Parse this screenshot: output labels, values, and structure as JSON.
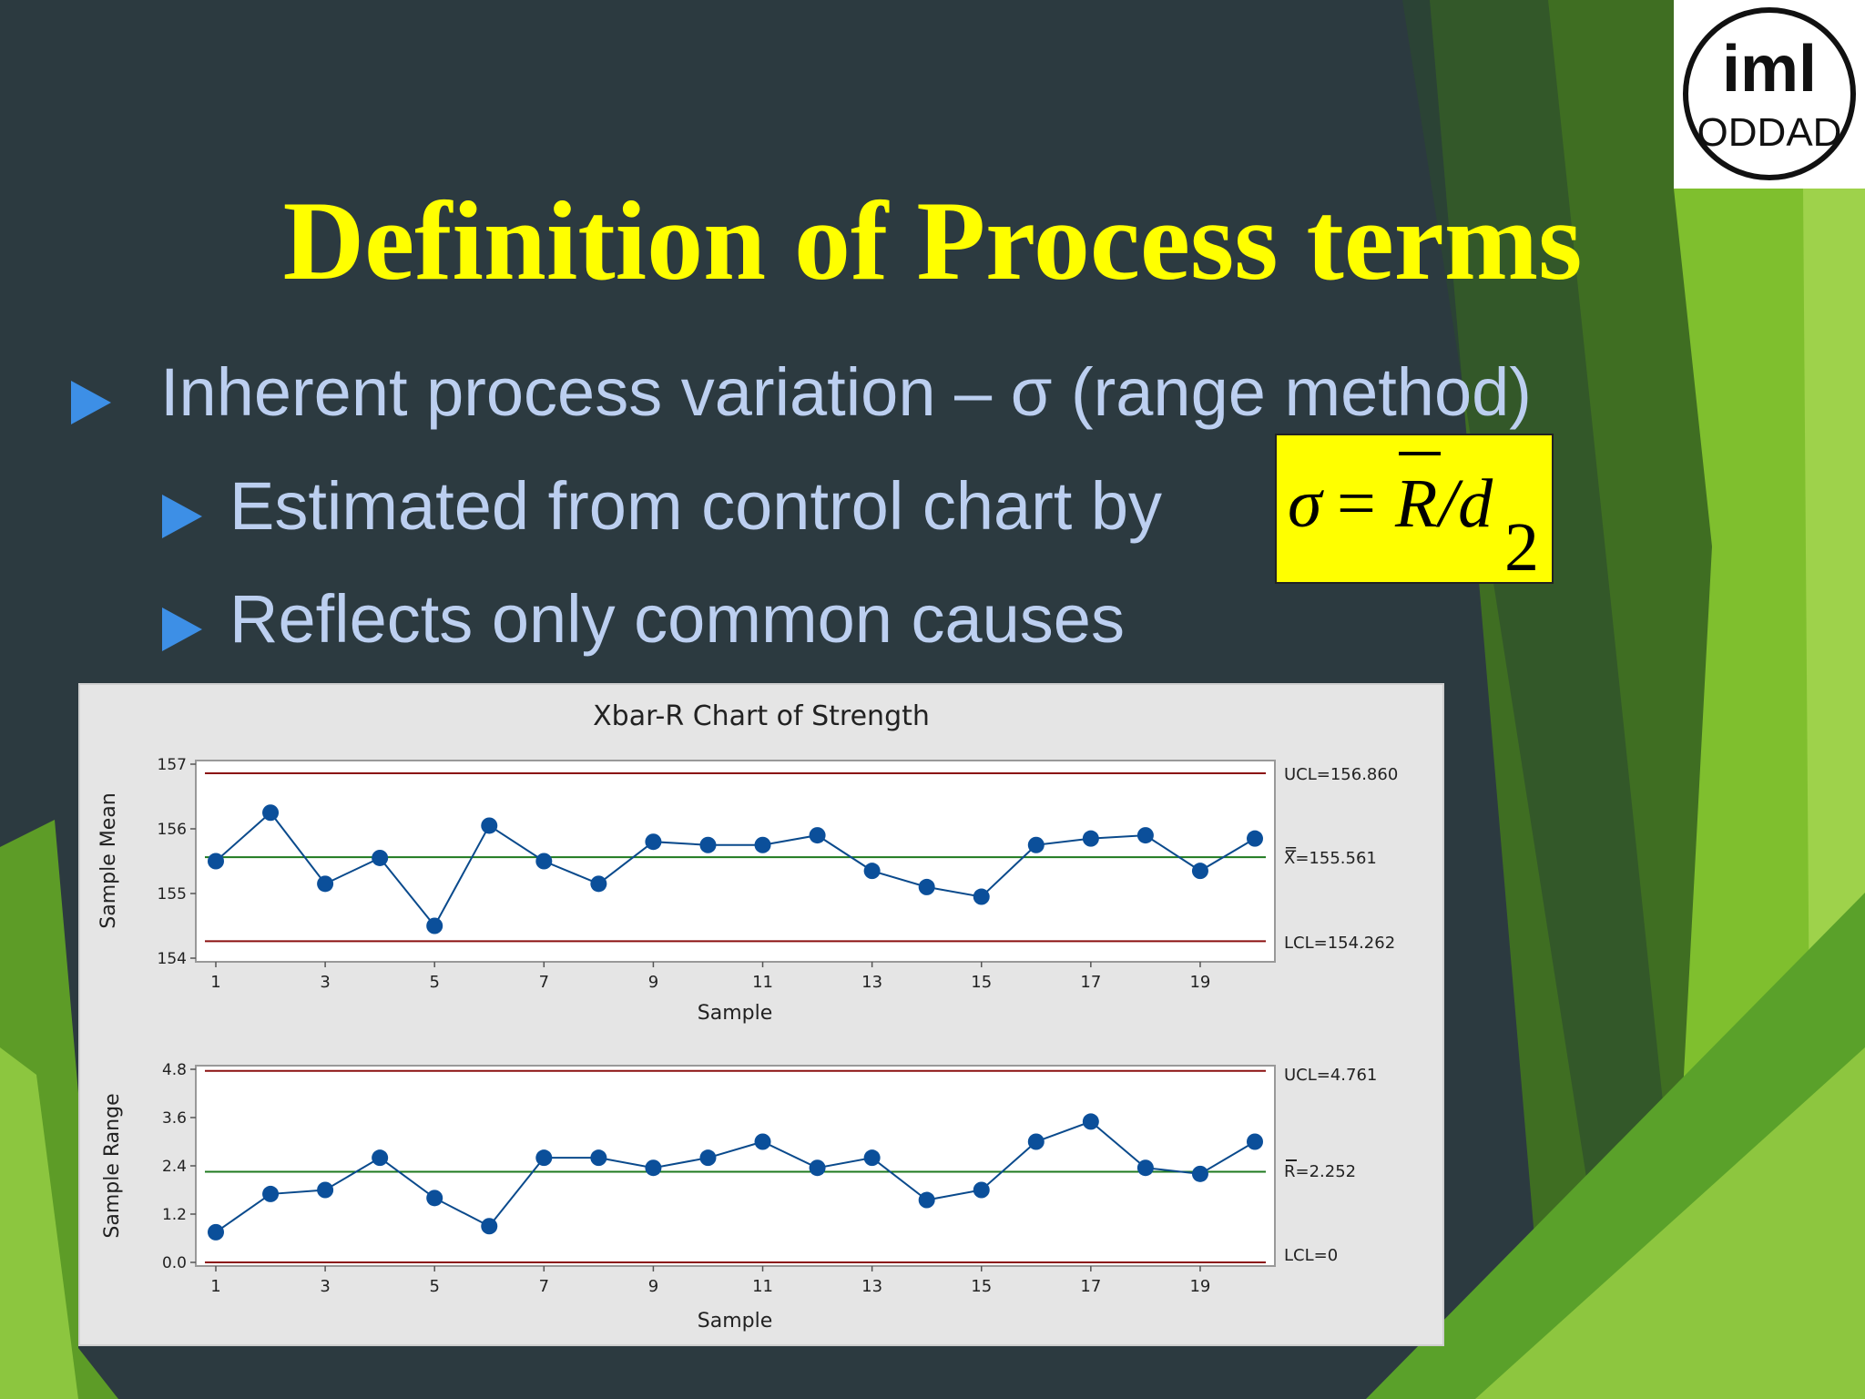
{
  "slide": {
    "title": "Definition of Process terms",
    "bullets": [
      "Inherent process variation – σ (range method)",
      "Estimated from control chart by",
      "Reflects only common causes"
    ],
    "formula": {
      "sigma": "σ",
      "equals": "=",
      "r": "R",
      "slash": "/d",
      "sub": "2"
    },
    "colors": {
      "background": "#2c3a40",
      "title": "#ffff00",
      "bullet_text": "#bccff0",
      "bullet_arrow": "#3d8fe6",
      "accent_green": "#7cc12b",
      "formula_box": "#ffff00"
    },
    "logo": {
      "icon": "iml-seal-logo",
      "text_top": "iml",
      "text_bottom": "ODDAD"
    }
  },
  "chart_data": {
    "type": "line",
    "title": "Xbar-R Chart of Strength",
    "charts": [
      {
        "name": "xbar",
        "ylabel": "Sample Mean",
        "xlabel": "Sample",
        "x": [
          1,
          2,
          3,
          4,
          5,
          6,
          7,
          8,
          9,
          10,
          11,
          12,
          13,
          14,
          15,
          16,
          17,
          18,
          19,
          20
        ],
        "values": [
          155.5,
          156.25,
          155.15,
          155.55,
          154.5,
          156.05,
          155.5,
          155.15,
          155.8,
          155.75,
          155.75,
          155.9,
          155.35,
          155.1,
          154.95,
          155.75,
          155.85,
          155.9,
          155.35,
          155.85
        ],
        "ylim": [
          154,
          157
        ],
        "yticks": [
          "154",
          "155",
          "156",
          "157"
        ],
        "xticks": [
          "1",
          "3",
          "5",
          "7",
          "9",
          "11",
          "13",
          "15",
          "17",
          "19"
        ],
        "ucl": 156.86,
        "center": 155.561,
        "lcl": 154.262,
        "ucl_label": "UCL=156.860",
        "center_label_bar": "=",
        "center_label": "X=155.561",
        "lcl_label": "LCL=154.262"
      },
      {
        "name": "range",
        "ylabel": "Sample Range",
        "xlabel": "Sample",
        "x": [
          1,
          2,
          3,
          4,
          5,
          6,
          7,
          8,
          9,
          10,
          11,
          12,
          13,
          14,
          15,
          16,
          17,
          18,
          19,
          20
        ],
        "values": [
          0.75,
          1.7,
          1.8,
          2.6,
          1.6,
          0.9,
          2.6,
          2.6,
          2.35,
          2.6,
          3.0,
          2.35,
          2.6,
          1.55,
          1.8,
          3.0,
          3.5,
          2.35,
          2.2,
          3.0
        ],
        "ylim": [
          0,
          4.8
        ],
        "yticks": [
          "0.0",
          "1.2",
          "2.4",
          "3.6",
          "4.8"
        ],
        "xticks": [
          "1",
          "3",
          "5",
          "7",
          "9",
          "11",
          "13",
          "15",
          "17",
          "19"
        ],
        "ucl": 4.761,
        "center": 2.252,
        "lcl": 0,
        "ucl_label": "UCL=4.761",
        "center_label": "R=2.252",
        "lcl_label": "LCL=0"
      }
    ],
    "colors": {
      "limit": "#8b1010",
      "center": "#1f7a1f",
      "series": "#0a4a8c",
      "marker": "#0b4f9a"
    },
    "grid": false
  }
}
